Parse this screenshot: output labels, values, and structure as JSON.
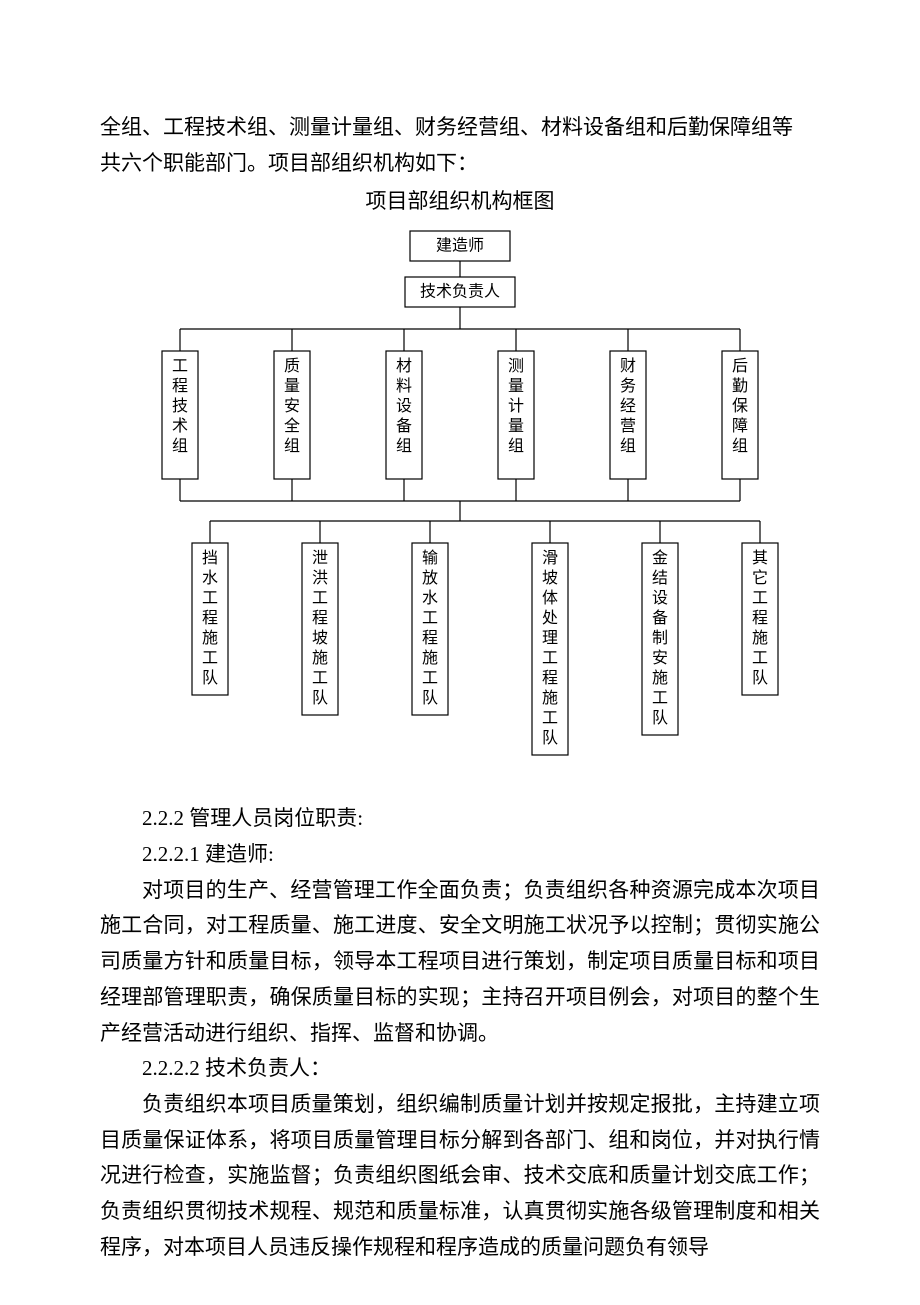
{
  "intro": {
    "line1": "全组、工程技术组、测量计量组、财务经营组、材料设备组和后勤保障组等",
    "line2": "共六个职能部门。项目部组织机构如下："
  },
  "chart": {
    "title": "项目部组织机构框图",
    "top_box_label": "建造师",
    "second_box_label": "技术负责人",
    "level3": [
      "工程技术组",
      "质量安全组",
      "材料设备组",
      "测量计量组",
      "财务经营组",
      "后勤保障组"
    ],
    "level4": [
      "挡水工程施工队",
      "泄洪工程坡施工队",
      "输放水工程施工队",
      "滑坡体处理工程施工队",
      "金结设备制安施工队",
      "其它工程施工队"
    ],
    "box_stroke": "#000000",
    "box_fill": "#ffffff",
    "text_color": "#000000",
    "font_size_box": 16,
    "level3_box_w": 36,
    "level3_box_h": 128,
    "level4_box_w": 36,
    "top_box_w": 100,
    "top_box_h": 30,
    "second_box_w": 110,
    "second_box_h": 30
  },
  "sections": {
    "s222": "2.2.2 管理人员岗位职责:",
    "s2221_title": "2.2.2.1 建造师:",
    "s2221_body": "对项目的生产、经营管理工作全面负责；负责组织各种资源完成本次项目施工合同，对工程质量、施工进度、安全文明施工状况予以控制；贯彻实施公司质量方针和质量目标，领导本工程项目进行策划，制定项目质量目标和项目经理部管理职责，确保质量目标的实现；主持召开项目例会，对项目的整个生产经营活动进行组织、指挥、监督和协调。",
    "s2222_title": "2.2.2.2 技术负责人：",
    "s2222_body": "负责组织本项目质量策划，组织编制质量计划并按规定报批，主持建立项目质量保证体系，将项目质量管理目标分解到各部门、组和岗位，并对执行情况进行检查，实施监督；负责组织图纸会审、技术交底和质量计划交底工作；负责组织贯彻技术规程、规范和质量标准，认真贯彻实施各级管理制度和相关程序，对本项目人员违反操作规程和程序造成的质量问题负有领导"
  }
}
